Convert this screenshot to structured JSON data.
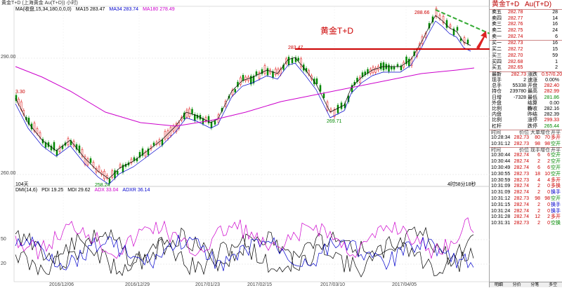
{
  "header": {
    "title": "黄金T+D  (上海黄金  Au(T+D)) 小时)",
    "chart_caption": "黄金T+D"
  },
  "ma_legend": [
    {
      "label": "MA(收盘,15,34,180,0,0,0)",
      "color": "#000"
    },
    {
      "label": "MA15 283.47",
      "color": "#000"
    },
    {
      "label": "MA34 283.74",
      "color": "#00c"
    },
    {
      "label": "MA180 278.49",
      "color": "#c0c"
    }
  ],
  "dmi_legend": [
    {
      "label": "DMI(14,6)",
      "color": "#000"
    },
    {
      "label": "PDI 19.25",
      "color": "#000"
    },
    {
      "label": "MDI 29.62",
      "color": "#000"
    },
    {
      "label": "ADX 33.04",
      "color": "#c0c"
    },
    {
      "label": "ADXR 36.14",
      "color": "#00c"
    }
  ],
  "y_axis": [
    "290.00",
    "280.00",
    "260.00"
  ],
  "dmi_axis": [
    "50",
    "20"
  ],
  "x_axis": [
    "2016/12/06",
    "2016/12/29",
    "2017/01/23",
    "2017/02/15",
    "2017/03/10",
    "2017/04/05"
  ],
  "annotations": {
    "high_left": "283.47",
    "high_right": "288.66",
    "low_mid": "269.71",
    "low_left": "258.24",
    "left_val": "3.30",
    "count_left": "104天",
    "count_right": "4时58分18秒"
  },
  "quote": {
    "name": "黄金T+D",
    "code": "Au(T+D)",
    "asks": [
      {
        "label": "卖五",
        "price": "282.78",
        "vol": "28"
      },
      {
        "label": "卖四",
        "price": "282.77",
        "vol": "14"
      },
      {
        "label": "卖三",
        "price": "282.76",
        "vol": "16"
      },
      {
        "label": "卖二",
        "price": "282.75",
        "vol": "24"
      },
      {
        "label": "卖一",
        "price": "282.74",
        "vol": "6"
      }
    ],
    "bids": [
      {
        "label": "买一",
        "price": "282.73",
        "vol": "16"
      },
      {
        "label": "买二",
        "price": "282.72",
        "vol": "15"
      },
      {
        "label": "买三",
        "price": "282.70",
        "vol": "59"
      },
      {
        "label": "买四",
        "price": "282.68",
        "vol": "1"
      },
      {
        "label": "买五",
        "price": "282.65",
        "vol": "2"
      }
    ],
    "stats": [
      {
        "k1": "最新",
        "v1": "282.73",
        "c1": "red",
        "k2": "涨跌",
        "v2": "0.57/0.20%",
        "c2": "red"
      },
      {
        "k1": "现手",
        "v1": "2",
        "c1": "",
        "k2": "速涨",
        "v2": "0.00%",
        "c2": ""
      },
      {
        "k1": "总手",
        "v1": "55338",
        "c1": "",
        "k2": "开盘",
        "v2": "282.40",
        "c2": "red"
      },
      {
        "k1": "持仓",
        "v1": "239780",
        "c1": "",
        "k2": "最高",
        "v2": "282.99",
        "c2": "red"
      },
      {
        "k1": "日增",
        "v1": "-7328",
        "c1": "",
        "k2": "最低",
        "v2": "281.86",
        "c2": "green"
      },
      {
        "k1": "外盘",
        "v1": "",
        "c1": "",
        "k2": "结算价",
        "v2": "0.00",
        "c2": ""
      },
      {
        "k1": "比例",
        "v1": "",
        "c1": "",
        "k2": "昨收",
        "v2": "282.16",
        "c2": ""
      },
      {
        "k1": "内盘",
        "v1": "",
        "c1": "",
        "k2": "昨结",
        "v2": "282.39",
        "c2": ""
      },
      {
        "k1": "比例",
        "v1": "",
        "c1": "",
        "k2": "涨停",
        "v2": "299.33",
        "c2": "red"
      },
      {
        "k1": "杠杆",
        "v1": "",
        "c1": "",
        "k2": "跌停",
        "v2": "265.44",
        "c2": "green"
      }
    ]
  },
  "big_trades_head": [
    "时间",
    "价位",
    "大单",
    "增仓",
    "开平"
  ],
  "big_trades": [
    [
      "10:28:34",
      "282.73",
      "80",
      "70",
      "多开"
    ],
    [
      "10:31:12",
      "282.73",
      "98",
      "98",
      "空开"
    ]
  ],
  "ticks_head": [
    "时间",
    "价位",
    "现手",
    "增仓",
    "开平"
  ],
  "ticks": [
    [
      "10:30:44",
      "282.74",
      "6",
      "6",
      "空开"
    ],
    [
      "10:30:44",
      "282.74",
      "2",
      "2",
      "空开"
    ],
    [
      "10:30:49",
      "282.74",
      "6",
      "6",
      "空开"
    ],
    [
      "10:30:55",
      "282.73",
      "18",
      "10",
      "空开"
    ],
    [
      "10:30:59",
      "282.73",
      "4",
      "4",
      "多开"
    ],
    [
      "10:31:09",
      "282.74",
      "2",
      "0",
      "多换"
    ],
    [
      "10:31:09",
      "282.74",
      "2",
      "0",
      "换手"
    ],
    [
      "10:31:12",
      "282.73",
      "98",
      "98",
      "空开"
    ],
    [
      "10:31:15",
      "282.74",
      "2",
      "0",
      "换手"
    ],
    [
      "10:31:24",
      "282.74",
      "2",
      "0",
      "换手"
    ],
    [
      "10:31:28",
      "282.74",
      "12",
      "2",
      "多开"
    ],
    [
      "10:31:31",
      "282.73",
      "2",
      "0",
      "空换"
    ]
  ],
  "bottom_tabs": [
    "明细",
    "分价",
    "分笔",
    "多空"
  ]
}
